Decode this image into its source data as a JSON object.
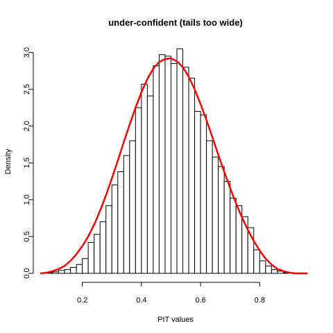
{
  "chart_data": {
    "type": "bar",
    "title": "under-confident (tails too wide)",
    "xlabel": "PIT values",
    "ylabel": "Density",
    "xlim": [
      0.06,
      0.98
    ],
    "ylim": [
      0,
      3.1
    ],
    "xticks": [
      0.2,
      0.4,
      0.6,
      0.8
    ],
    "xtick_labels": [
      "0.2",
      "0.4",
      "0.6",
      "0.8"
    ],
    "yticks": [
      0,
      0.5,
      1,
      1.5,
      2,
      2.5,
      3
    ],
    "ytick_labels": [
      "0.0",
      "0.5",
      "1.0",
      "1.5",
      "2.0",
      "2.5",
      "3.0"
    ],
    "grid": false,
    "bin_width": 0.02,
    "histogram": {
      "bin_starts": [
        0.08,
        0.1,
        0.12,
        0.14,
        0.16,
        0.18,
        0.2,
        0.22,
        0.24,
        0.26,
        0.28,
        0.3,
        0.32,
        0.34,
        0.36,
        0.38,
        0.4,
        0.42,
        0.44,
        0.46,
        0.48,
        0.5,
        0.52,
        0.54,
        0.56,
        0.58,
        0.6,
        0.62,
        0.64,
        0.66,
        0.68,
        0.7,
        0.72,
        0.74,
        0.76,
        0.78,
        0.8,
        0.82,
        0.84,
        0.86,
        0.88
      ],
      "values": [
        0.01,
        0.02,
        0.04,
        0.05,
        0.08,
        0.12,
        0.2,
        0.42,
        0.53,
        0.7,
        0.92,
        1.2,
        1.38,
        1.6,
        1.8,
        2.25,
        2.57,
        2.41,
        2.82,
        2.97,
        2.95,
        2.85,
        3.05,
        2.8,
        2.65,
        2.2,
        2.15,
        1.8,
        1.58,
        1.45,
        1.25,
        1.02,
        0.92,
        0.77,
        0.62,
        0.32,
        0.17,
        0.1,
        0.05,
        0.03,
        0.01
      ]
    },
    "series": [
      {
        "type": "line",
        "color": "#ff0000",
        "x": [
          0.06,
          0.08,
          0.1,
          0.12,
          0.14,
          0.16,
          0.18,
          0.2,
          0.22,
          0.24,
          0.26,
          0.28,
          0.3,
          0.32,
          0.34,
          0.36,
          0.38,
          0.4,
          0.42,
          0.44,
          0.46,
          0.48,
          0.5,
          0.52,
          0.54,
          0.56,
          0.58,
          0.6,
          0.62,
          0.64,
          0.66,
          0.68,
          0.7,
          0.72,
          0.74,
          0.76,
          0.78,
          0.8,
          0.82,
          0.84,
          0.86,
          0.88,
          0.9,
          0.92,
          0.94,
          0.96
        ],
        "y": [
          0.0,
          0.01,
          0.03,
          0.06,
          0.1,
          0.17,
          0.26,
          0.37,
          0.5,
          0.66,
          0.85,
          1.06,
          1.29,
          1.53,
          1.78,
          2.02,
          2.25,
          2.46,
          2.64,
          2.78,
          2.87,
          2.91,
          2.92,
          2.88,
          2.8,
          2.67,
          2.5,
          2.3,
          2.08,
          1.85,
          1.61,
          1.38,
          1.16,
          0.95,
          0.76,
          0.59,
          0.44,
          0.31,
          0.2,
          0.12,
          0.06,
          0.03,
          0.01,
          0.0,
          0.0,
          0.0
        ]
      }
    ]
  }
}
